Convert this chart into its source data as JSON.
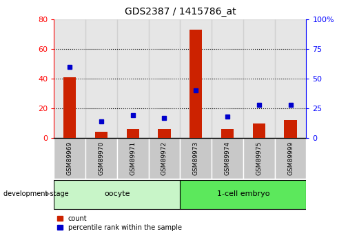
{
  "title": "GDS2387 / 1415786_at",
  "samples": [
    "GSM89969",
    "GSM89970",
    "GSM89971",
    "GSM89972",
    "GSM89973",
    "GSM89974",
    "GSM89975",
    "GSM89999"
  ],
  "counts": [
    41,
    4,
    6,
    6,
    73,
    6,
    10,
    12
  ],
  "percentiles": [
    60,
    14,
    19,
    17,
    40,
    18,
    28,
    28
  ],
  "groups": [
    {
      "label": "oocyte",
      "start": 0,
      "end": 3,
      "color": "#c8f5c8"
    },
    {
      "label": "1-cell embryo",
      "start": 4,
      "end": 7,
      "color": "#5ce85c"
    }
  ],
  "left_ylim": [
    0,
    80
  ],
  "right_ylim": [
    0,
    100
  ],
  "left_yticks": [
    0,
    20,
    40,
    60,
    80
  ],
  "right_yticks": [
    0,
    25,
    50,
    75,
    100
  ],
  "right_yticklabels": [
    "0",
    "25",
    "50",
    "75",
    "100%"
  ],
  "bar_color": "#cc2200",
  "dot_color": "#0000cc",
  "bar_width": 0.4,
  "legend_count": "count",
  "legend_percentile": "percentile rank within the sample",
  "sample_bg_color": "#c8c8c8",
  "sample_border_color": "white",
  "grid_yticks": [
    20,
    40,
    60
  ]
}
